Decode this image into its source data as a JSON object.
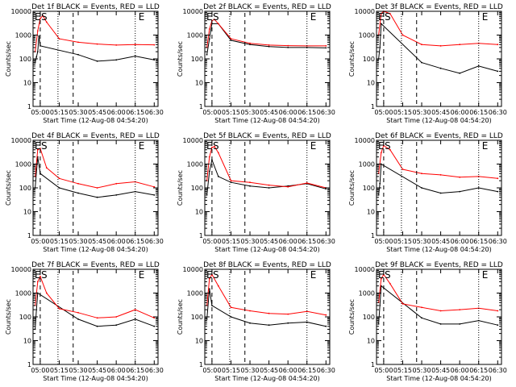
{
  "figure": {
    "xlabel": "Start Time (12-Aug-08 04:54:20)",
    "ylabel": "Counts/sec",
    "xticks": [
      "05:00",
      "05:15",
      "05:30",
      "05:45",
      "06:00",
      "06:15",
      "06:30"
    ],
    "yticks": [
      "1",
      "10",
      "100",
      "1000",
      "10000"
    ]
  },
  "chart_data": [
    {
      "type": "line",
      "title": "Det 1f BLACK = Events, RED = LLD",
      "markers": [
        "E",
        "S",
        "E"
      ],
      "xlim": [
        "04:54:20",
        "06:33"
      ],
      "ylim": [
        1,
        10000
      ],
      "yscale": "log",
      "series": [
        {
          "name": "Events",
          "color": "#000000",
          "x": [
            "04:56",
            "04:57",
            "04:58",
            "04:59",
            "05:00",
            "05:30",
            "05:45",
            "06:00",
            "06:15",
            "06:30"
          ],
          "values": [
            70,
            120,
            200,
            900,
            350,
            150,
            80,
            90,
            130,
            90
          ]
        },
        {
          "name": "LLD",
          "color": "#ff0000",
          "x": [
            "04:56",
            "04:58",
            "05:00",
            "05:02",
            "05:05",
            "05:15",
            "05:30",
            "05:45",
            "06:00",
            "06:15",
            "06:30"
          ],
          "values": [
            200,
            1500,
            5000,
            6500,
            3500,
            700,
            500,
            420,
            380,
            400,
            390
          ]
        }
      ]
    },
    {
      "type": "line",
      "title": "Det 2f BLACK = Events, RED = LLD",
      "markers": [
        "E",
        "S",
        "E"
      ],
      "xlim": [
        "04:54:20",
        "06:33"
      ],
      "ylim": [
        1,
        10000
      ],
      "yscale": "log",
      "series": [
        {
          "name": "Events",
          "color": "#000000",
          "x": [
            "04:56",
            "04:58",
            "05:00",
            "05:05",
            "05:15",
            "05:30",
            "05:45",
            "06:00",
            "06:15",
            "06:30"
          ],
          "values": [
            150,
            700,
            3000,
            3000,
            600,
            400,
            330,
            300,
            300,
            290
          ]
        },
        {
          "name": "LLD",
          "color": "#ff0000",
          "x": [
            "04:56",
            "04:58",
            "05:00",
            "05:02",
            "05:05",
            "05:15",
            "05:30",
            "05:45",
            "06:00",
            "06:15",
            "06:30"
          ],
          "values": [
            300,
            1800,
            4000,
            4500,
            3000,
            700,
            450,
            380,
            360,
            350,
            350
          ]
        }
      ]
    },
    {
      "type": "line",
      "title": "Det 3f BLACK = Events, RED = LLD",
      "markers": [
        "E",
        "S",
        "E"
      ],
      "xlim": [
        "04:54:20",
        "06:33"
      ],
      "ylim": [
        1,
        10000
      ],
      "yscale": "log",
      "series": [
        {
          "name": "Events",
          "color": "#000000",
          "x": [
            "04:56",
            "04:57",
            "04:58",
            "05:30",
            "05:45",
            "06:00",
            "06:15",
            "06:30"
          ],
          "values": [
            100,
            300,
            3000,
            70,
            40,
            25,
            50,
            30
          ]
        },
        {
          "name": "LLD",
          "color": "#ff0000",
          "x": [
            "04:56",
            "04:58",
            "05:00",
            "05:05",
            "05:15",
            "05:30",
            "05:45",
            "06:00",
            "06:15",
            "06:30"
          ],
          "values": [
            1000,
            8000,
            10000,
            8000,
            1000,
            400,
            350,
            400,
            450,
            400
          ]
        }
      ]
    },
    {
      "type": "line",
      "title": "Det 4f BLACK = Events, RED = LLD",
      "markers": [
        "E",
        "S",
        "E"
      ],
      "xlim": [
        "04:54:20",
        "06:33"
      ],
      "ylim": [
        1,
        10000
      ],
      "yscale": "log",
      "series": [
        {
          "name": "Events",
          "color": "#000000",
          "x": [
            "04:56",
            "04:58",
            "05:00",
            "05:15",
            "05:30",
            "05:45",
            "06:00",
            "06:15",
            "06:30"
          ],
          "values": [
            100,
            2000,
            400,
            100,
            60,
            40,
            50,
            70,
            50
          ]
        },
        {
          "name": "LLD",
          "color": "#ff0000",
          "x": [
            "04:56",
            "04:58",
            "05:00",
            "05:05",
            "05:15",
            "05:30",
            "05:45",
            "06:00",
            "06:15",
            "06:30"
          ],
          "values": [
            300,
            4000,
            4500,
            700,
            250,
            150,
            100,
            150,
            180,
            110
          ]
        }
      ]
    },
    {
      "type": "line",
      "title": "Det 5f BLACK = Events, RED = LLD",
      "markers": [
        "E",
        "S",
        "E"
      ],
      "xlim": [
        "04:54:20",
        "06:33"
      ],
      "ylim": [
        1,
        10000
      ],
      "yscale": "log",
      "series": [
        {
          "name": "Events",
          "color": "#000000",
          "x": [
            "04:56",
            "04:58",
            "05:00",
            "05:05",
            "05:15",
            "05:30",
            "05:45",
            "06:00",
            "06:15",
            "06:30"
          ],
          "values": [
            50,
            500,
            1500,
            300,
            170,
            120,
            100,
            120,
            150,
            90
          ]
        },
        {
          "name": "LLD",
          "color": "#ff0000",
          "x": [
            "04:56",
            "04:58",
            "05:00",
            "05:02",
            "05:05",
            "05:15",
            "05:30",
            "05:45",
            "06:00",
            "06:15",
            "06:30"
          ],
          "values": [
            200,
            2000,
            5000,
            5500,
            3000,
            200,
            170,
            130,
            110,
            160,
            100
          ]
        }
      ]
    },
    {
      "type": "line",
      "title": "Det 6f BLACK = Events, RED = LLD",
      "markers": [
        "E",
        "S",
        "E"
      ],
      "xlim": [
        "04:54:20",
        "06:33"
      ],
      "ylim": [
        1,
        10000
      ],
      "yscale": "log",
      "series": [
        {
          "name": "Events",
          "color": "#000000",
          "x": [
            "04:56",
            "04:57",
            "04:58",
            "05:30",
            "05:45",
            "06:00",
            "06:15",
            "06:30"
          ],
          "values": [
            50,
            150,
            1000,
            100,
            60,
            70,
            100,
            70
          ]
        },
        {
          "name": "LLD",
          "color": "#ff0000",
          "x": [
            "04:56",
            "04:58",
            "05:00",
            "05:05",
            "05:15",
            "05:30",
            "05:45",
            "06:00",
            "06:15",
            "06:30"
          ],
          "values": [
            400,
            3000,
            6000,
            4000,
            600,
            400,
            350,
            280,
            300,
            250
          ]
        }
      ]
    },
    {
      "type": "line",
      "title": "Det 7f BLACK = Events, RED = LLD",
      "markers": [
        "E",
        "S",
        "E"
      ],
      "xlim": [
        "04:54:20",
        "06:33"
      ],
      "ylim": [
        1,
        10000
      ],
      "yscale": "log",
      "series": [
        {
          "name": "Events",
          "color": "#000000",
          "x": [
            "04:56",
            "04:57",
            "04:58",
            "05:30",
            "05:45",
            "06:00",
            "06:15",
            "06:30"
          ],
          "values": [
            30,
            200,
            1000,
            80,
            40,
            45,
            80,
            40
          ]
        },
        {
          "name": "LLD",
          "color": "#ff0000",
          "x": [
            "04:56",
            "04:58",
            "05:00",
            "05:05",
            "05:15",
            "05:30",
            "05:45",
            "06:00",
            "06:15",
            "06:30"
          ],
          "values": [
            300,
            3000,
            5000,
            1000,
            220,
            150,
            90,
            100,
            200,
            90
          ]
        }
      ]
    },
    {
      "type": "line",
      "title": "Det 8f BLACK = Events, RED = LLD",
      "markers": [
        "E",
        "S",
        "E"
      ],
      "xlim": [
        "04:54:20",
        "06:33"
      ],
      "ylim": [
        1,
        10000
      ],
      "yscale": "log",
      "series": [
        {
          "name": "Events",
          "color": "#000000",
          "x": [
            "04:56",
            "04:58",
            "05:00",
            "05:15",
            "05:30",
            "05:45",
            "06:00",
            "06:15",
            "06:30"
          ],
          "values": [
            80,
            1500,
            300,
            100,
            55,
            45,
            55,
            60,
            40
          ]
        },
        {
          "name": "LLD",
          "color": "#ff0000",
          "x": [
            "04:56",
            "04:58",
            "05:00",
            "05:05",
            "05:15",
            "05:30",
            "05:45",
            "06:00",
            "06:15",
            "06:30"
          ],
          "values": [
            300,
            4000,
            6000,
            2000,
            250,
            180,
            140,
            130,
            170,
            120
          ]
        }
      ]
    },
    {
      "type": "line",
      "title": "Det 9f BLACK = Events, RED = LLD",
      "markers": [
        "E",
        "S",
        "E"
      ],
      "xlim": [
        "04:54:20",
        "06:33"
      ],
      "ylim": [
        1,
        10000
      ],
      "yscale": "log",
      "series": [
        {
          "name": "Events",
          "color": "#000000",
          "x": [
            "04:56",
            "04:57",
            "04:58",
            "05:30",
            "05:45",
            "06:00",
            "06:15",
            "06:30"
          ],
          "values": [
            50,
            300,
            2000,
            90,
            50,
            50,
            70,
            45
          ]
        },
        {
          "name": "LLD",
          "color": "#ff0000",
          "x": [
            "04:56",
            "04:58",
            "05:00",
            "05:05",
            "05:15",
            "05:30",
            "05:45",
            "06:00",
            "06:15",
            "06:30"
          ],
          "values": [
            400,
            4000,
            6000,
            2500,
            350,
            250,
            180,
            200,
            230,
            180
          ]
        }
      ]
    }
  ]
}
